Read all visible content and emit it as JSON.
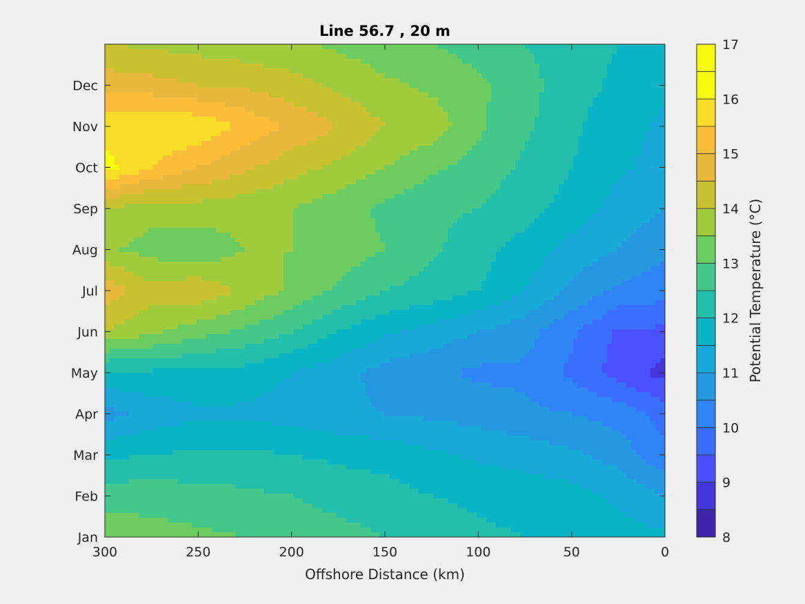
{
  "chart_data": {
    "type": "heatmap",
    "subtype": "filled-contour",
    "title": "Line 56.7 , 20 m",
    "xlabel": "Offshore Distance (km)",
    "ylabel": "",
    "x_reversed": true,
    "xlim": [
      0,
      300
    ],
    "x_ticks": [
      300,
      250,
      200,
      150,
      100,
      50,
      0
    ],
    "x_tick_labels": [
      "300",
      "250",
      "200",
      "150",
      "100",
      "50",
      "0"
    ],
    "y_ticks": [
      {
        "label": "Jan",
        "month": 1
      },
      {
        "label": "Feb",
        "month": 2
      },
      {
        "label": "Mar",
        "month": 3
      },
      {
        "label": "Apr",
        "month": 4
      },
      {
        "label": "May",
        "month": 5
      },
      {
        "label": "Jun",
        "month": 6
      },
      {
        "label": "Jul",
        "month": 7
      },
      {
        "label": "Aug",
        "month": 8
      },
      {
        "label": "Sep",
        "month": 9
      },
      {
        "label": "Oct",
        "month": 10
      },
      {
        "label": "Nov",
        "month": 11
      },
      {
        "label": "Dec",
        "month": 12
      }
    ],
    "ylim_months": [
      1,
      13
    ],
    "colorbar": {
      "label": "Potential Temperature (°C)",
      "ticks": [
        8,
        9,
        10,
        11,
        12,
        13,
        14,
        15,
        16,
        17
      ],
      "range": [
        8,
        17
      ],
      "step": 0.5,
      "colormap": "parula",
      "colors": [
        "#3e26a8",
        "#4435dd",
        "#4a50fc",
        "#3a6ffe",
        "#2f85f5",
        "#2598e0",
        "#19aad9",
        "#0cb5c6",
        "#24bfaa",
        "#44c78a",
        "#6dcc60",
        "#9fcb3c",
        "#c8c231",
        "#e8b83d",
        "#fbbd3a",
        "#f7dd27",
        "#f9fb0f",
        "#f9fb0f"
      ]
    },
    "field": {
      "description": "Estimated seasonal potential temperature at 20 m across offshore distance",
      "x_km": [
        0,
        25,
        50,
        75,
        100,
        125,
        150,
        175,
        200,
        225,
        250,
        275,
        300
      ],
      "months": [
        1,
        2,
        3,
        4,
        5,
        6,
        7,
        8,
        9,
        10,
        11,
        12,
        13
      ],
      "values": [
        [
          11.6,
          11.7,
          11.9,
          12.0,
          12.1,
          12.3,
          12.5,
          12.7,
          12.9,
          13.0,
          13.1,
          13.2,
          13.3
        ],
        [
          11.0,
          11.4,
          11.7,
          11.8,
          11.9,
          12.0,
          12.2,
          12.3,
          12.5,
          12.6,
          12.7,
          12.8,
          12.8
        ],
        [
          10.1,
          10.8,
          11.1,
          11.3,
          11.4,
          11.6,
          11.8,
          11.9,
          12.0,
          12.1,
          12.1,
          12.0,
          11.9
        ],
        [
          9.8,
          10.3,
          10.5,
          10.6,
          10.8,
          10.9,
          11.0,
          11.1,
          11.3,
          11.4,
          11.4,
          11.2,
          10.8
        ],
        [
          8.8,
          9.3,
          9.9,
          10.4,
          10.4,
          10.6,
          10.8,
          11.2,
          11.5,
          11.8,
          11.9,
          11.9,
          11.9
        ],
        [
          9.4,
          9.4,
          10.1,
          10.7,
          11.0,
          11.3,
          11.6,
          12.0,
          12.5,
          12.9,
          13.2,
          13.6,
          14.0
        ],
        [
          10.2,
          10.4,
          10.9,
          11.5,
          12.0,
          12.3,
          12.5,
          12.9,
          13.4,
          13.9,
          14.4,
          14.2,
          14.8
        ],
        [
          10.6,
          11.0,
          11.3,
          11.8,
          12.2,
          12.6,
          13.0,
          13.3,
          13.5,
          13.5,
          13.1,
          13.3,
          13.6
        ],
        [
          11.0,
          11.3,
          11.8,
          12.2,
          12.5,
          12.6,
          12.9,
          13.2,
          13.5,
          13.7,
          13.8,
          13.7,
          14.0
        ],
        [
          11.3,
          11.6,
          12.0,
          12.4,
          12.8,
          13.1,
          13.5,
          13.9,
          14.2,
          14.6,
          15.0,
          15.5,
          16.2
        ],
        [
          11.4,
          11.7,
          12.1,
          12.6,
          13.1,
          13.8,
          14.0,
          14.5,
          14.9,
          15.4,
          15.9,
          16.0,
          15.8
        ],
        [
          11.6,
          11.9,
          12.2,
          12.7,
          13.1,
          13.4,
          13.6,
          13.9,
          14.2,
          14.4,
          14.5,
          14.7,
          14.8
        ],
        [
          11.8,
          12.0,
          12.2,
          12.5,
          12.8,
          13.0,
          13.2,
          13.4,
          13.6,
          13.7,
          13.8,
          13.9,
          14.0
        ]
      ]
    },
    "grid": false,
    "legend": "colorbar-right"
  }
}
